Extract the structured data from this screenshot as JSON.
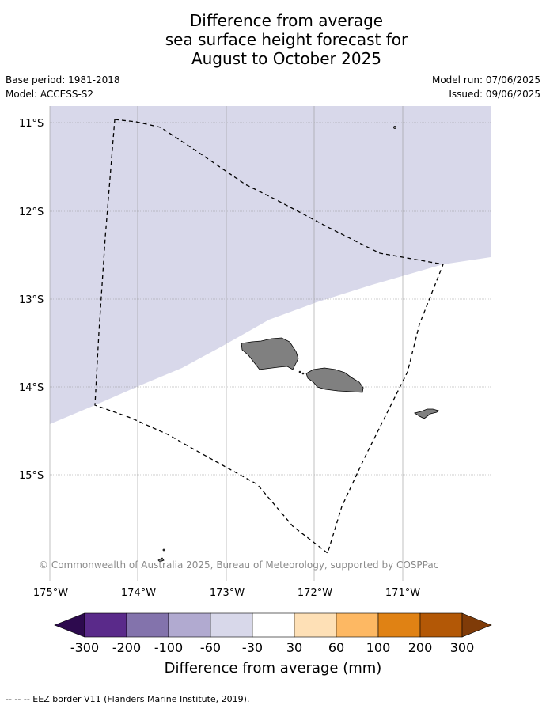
{
  "title_lines": [
    "Difference from average",
    "sea surface height forecast for",
    "August to October 2025"
  ],
  "meta": {
    "base_period": "Base period: 1981-2018",
    "model": "Model: ACCESS-S2",
    "model_run": "Model run: 07/06/2025",
    "issued": "Issued: 09/06/2025"
  },
  "map": {
    "lat_labels": [
      "11°S",
      "12°S",
      "13°S",
      "14°S",
      "15°S"
    ],
    "lon_labels": [
      "175°W",
      "174°W",
      "173°W",
      "172°W",
      "171°W"
    ],
    "copyright": "© Commonwealth of Australia 2025, Bureau of Meteorology, supported by COSPPac",
    "anomaly_fill_color": "#d8d8ea",
    "land_color": "#808080"
  },
  "colorbar": {
    "ticks": [
      "-300",
      "-200",
      "-100",
      "-60",
      "-30",
      "30",
      "60",
      "100",
      "200",
      "300"
    ],
    "colors": [
      "#2d0a4e",
      "#5a2a8a",
      "#8373ac",
      "#b1aad0",
      "#d8d8ea",
      "#ffffff",
      "#fee0b6",
      "#fdb863",
      "#e08214",
      "#b35806",
      "#7f3b08"
    ],
    "label": "Difference from average (mm)"
  },
  "legend_text": "--  --  -- EEZ border V11 (Flanders Marine Institute, 2019)."
}
